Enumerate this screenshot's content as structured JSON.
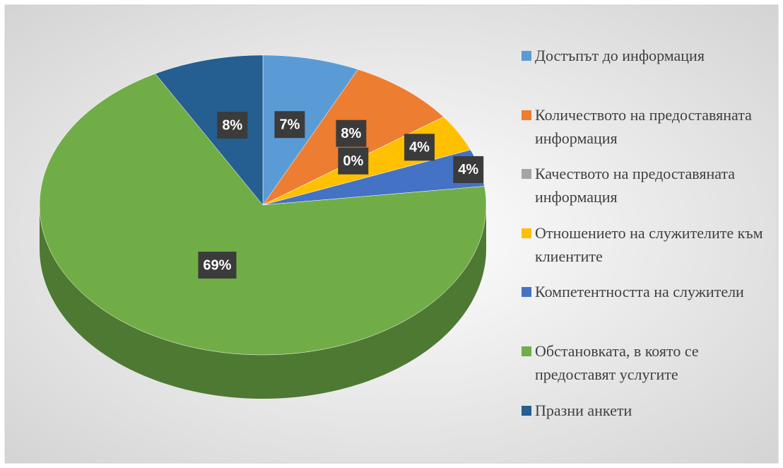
{
  "chart_data": {
    "type": "pie",
    "categories": [
      "Достъпът до информация",
      "Количеството на предоставяната информация",
      "Качеството на предоставяната информация",
      "Отношението на служителите към клиентите",
      "Компетентността на служители",
      "Обстановката, в която се предоставят услугите",
      "Празни анкети"
    ],
    "values": [
      7,
      8,
      0,
      4,
      4,
      69,
      8
    ],
    "value_labels": [
      "7%",
      "8%",
      "0%",
      "4%",
      "4%",
      "69%",
      "8%"
    ],
    "colors": [
      "#5b9bd5",
      "#ed7d31",
      "#a5a5a5",
      "#ffc000",
      "#4472c4",
      "#70ad47",
      "#255e91"
    ],
    "legend": "right"
  }
}
